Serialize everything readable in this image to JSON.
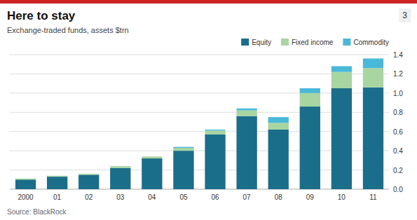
{
  "chart_data": {
    "type": "bar",
    "title": "Here to stay",
    "subtitle": "Exchange-traded funds, assets $trn",
    "annotations": [
      "Source: BlackRock",
      "3"
    ],
    "categories": [
      "2000",
      "01",
      "02",
      "03",
      "04",
      "05",
      "06",
      "07",
      "08",
      "09",
      "10",
      "11"
    ],
    "series": [
      {
        "name": "Equity",
        "color": "#1a6e8a",
        "values": [
          0.1,
          0.13,
          0.15,
          0.22,
          0.32,
          0.4,
          0.57,
          0.76,
          0.62,
          0.86,
          1.05,
          1.06
        ]
      },
      {
        "name": "Fixed income",
        "color": "#a8d5a2",
        "values": [
          0.01,
          0.01,
          0.01,
          0.02,
          0.02,
          0.03,
          0.04,
          0.06,
          0.07,
          0.14,
          0.17,
          0.2
        ]
      },
      {
        "name": "Commodity",
        "color": "#4ab8d8",
        "values": [
          0.0,
          0.0,
          0.0,
          0.0,
          0.0,
          0.01,
          0.01,
          0.02,
          0.06,
          0.05,
          0.06,
          0.1
        ]
      }
    ],
    "stacked": true,
    "ylim": [
      0,
      1.4
    ],
    "yticks": [
      {
        "value": 0,
        "label": "0.0"
      },
      0.2,
      0.4,
      0.6,
      0.8,
      {
        "value": 1.0,
        "label": "1.0"
      },
      1.2,
      1.4
    ],
    "grid": true,
    "legend": "top"
  }
}
